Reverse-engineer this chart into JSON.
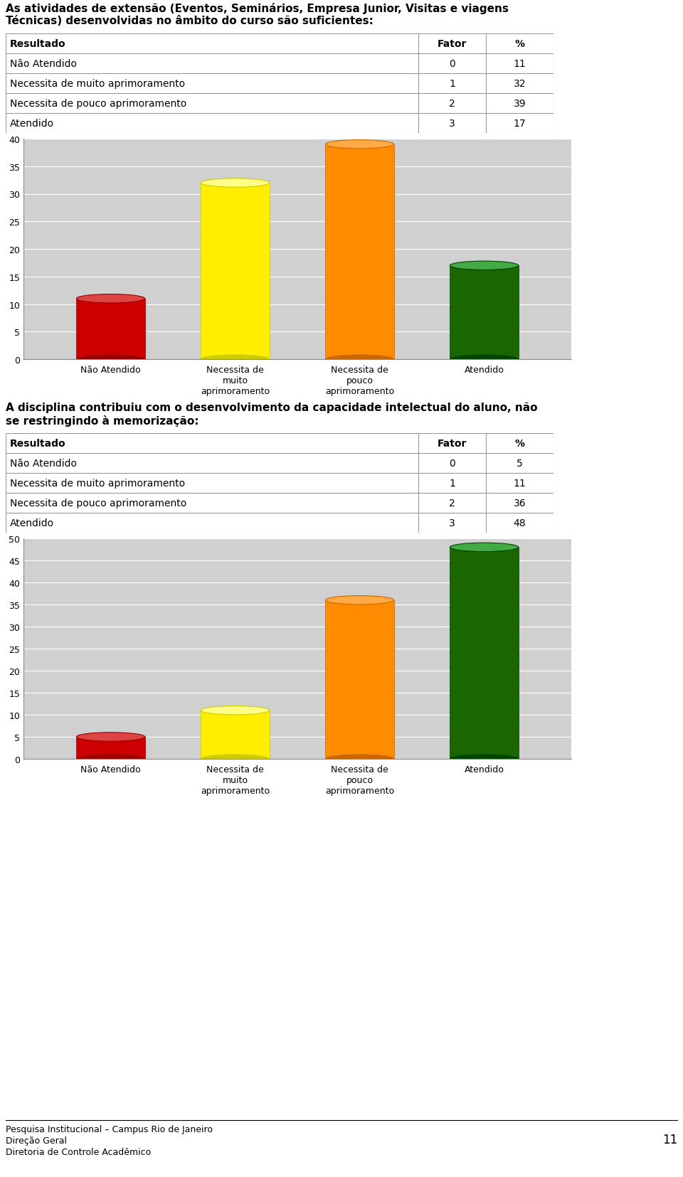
{
  "title1": "As atividades de extensão (Eventos, Seminários, Empresa Junior, Visitas e viagens\nTécnicas) desenvolvidas no âmbito do curso são suficientes:",
  "table1_headers": [
    "Resultado",
    "Fator",
    "%"
  ],
  "table1_rows": [
    [
      "Não Atendido",
      "0",
      "11"
    ],
    [
      "Necessita de muito aprimoramento",
      "1",
      "32"
    ],
    [
      "Necessita de pouco aprimoramento",
      "2",
      "39"
    ],
    [
      "Atendido",
      "3",
      "17"
    ]
  ],
  "chart1_values": [
    11,
    32,
    39,
    17
  ],
  "chart1_ylim": [
    0,
    40
  ],
  "chart1_yticks": [
    0,
    5,
    10,
    15,
    20,
    25,
    30,
    35,
    40
  ],
  "title2": "A disciplina contribuiu com o desenvolvimento da capacidade intelectual do aluno, não\nse restringindo à memorização:",
  "table2_headers": [
    "Resultado",
    "Fator",
    "%"
  ],
  "table2_rows": [
    [
      "Não Atendido",
      "0",
      "5"
    ],
    [
      "Necessita de muito aprimoramento",
      "1",
      "11"
    ],
    [
      "Necessita de pouco aprimoramento",
      "2",
      "36"
    ],
    [
      "Atendido",
      "3",
      "48"
    ]
  ],
  "chart2_values": [
    5,
    11,
    36,
    48
  ],
  "chart2_ylim": [
    0,
    50
  ],
  "chart2_yticks": [
    0,
    5,
    10,
    15,
    20,
    25,
    30,
    35,
    40,
    45,
    50
  ],
  "categories": [
    "Não Atendido",
    "Necessita de\nmuito\naprimoramento",
    "Necessita de\npouco\naprimoramento",
    "Atendido"
  ],
  "bar_colors": [
    "#cc0000",
    "#ffee00",
    "#ff8c00",
    "#1a6600"
  ],
  "bar_top_colors": [
    "#dd4444",
    "#ffff88",
    "#ffaa44",
    "#44aa44"
  ],
  "bar_side_colors": [
    "#990000",
    "#cccc00",
    "#cc6600",
    "#004400"
  ],
  "footer_line1": "Pesquisa Institucional – Campus Rio de Janeiro",
  "footer_line2": "Direção Geral",
  "footer_line3": "Diretoria de Controle Acadêmico",
  "page_number": "11",
  "background_color": "#ffffff",
  "chart_bg_color": "#d0d0d0",
  "table_line_color": "#999999"
}
